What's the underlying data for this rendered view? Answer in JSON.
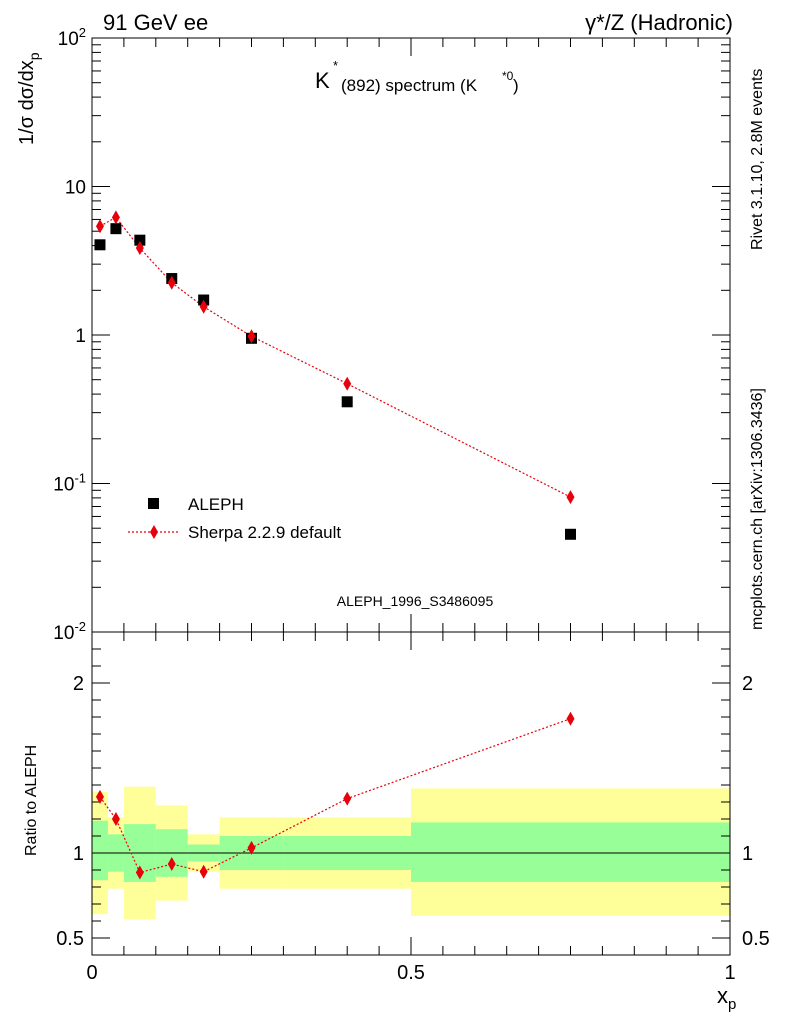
{
  "header": {
    "left": "91 GeV ee",
    "right": "γ*/Z (Hadronic)"
  },
  "side_labels": {
    "rivet": "Rivet 3.1.10,  2.8M events",
    "mcplots": "mcplots.cern.ch [arXiv:1306.3436]"
  },
  "colors": {
    "data": "#000000",
    "mc": "#e8000b",
    "band_inner": "#98ff98",
    "band_outer": "#ffff99"
  },
  "chart_data": [
    {
      "type": "scatter",
      "panel": "main",
      "title": "K*(892) spectrum (K*0)",
      "ylabel": "1/σ dσ/dxp",
      "xlim": [
        0,
        1
      ],
      "ylim": [
        0.01,
        100
      ],
      "yscale": "log",
      "ytick_labels": [
        "10^-2",
        "10^-1",
        "1",
        "10",
        "10^2"
      ],
      "watermark": "ALEPH_1996_S3486095",
      "legend_position": "lower-left",
      "series": [
        {
          "name": "ALEPH",
          "marker": "square",
          "x": [
            0.0125,
            0.0375,
            0.075,
            0.125,
            0.175,
            0.25,
            0.4,
            0.75
          ],
          "y": [
            4.05,
            5.2,
            4.35,
            2.4,
            1.72,
            0.95,
            0.355,
            0.0455
          ]
        },
        {
          "name": "Sherpa 2.2.9 default",
          "marker": "diamond",
          "line": "dotted",
          "x": [
            0.0125,
            0.0375,
            0.075,
            0.125,
            0.175,
            0.25,
            0.4,
            0.75
          ],
          "y": [
            5.4,
            6.2,
            3.85,
            2.25,
            1.55,
            0.98,
            0.47,
            0.081
          ]
        }
      ]
    },
    {
      "type": "line",
      "panel": "ratio",
      "ylabel": "Ratio to ALEPH",
      "xlabel": "xp",
      "xlim": [
        0,
        1
      ],
      "ylim": [
        0.4,
        2.3
      ],
      "xtick_labels": [
        "0",
        "0.5",
        "1"
      ],
      "ytick_labels": [
        "0.5",
        "1",
        "2"
      ],
      "series": [
        {
          "name": "Sherpa 2.2.9 default",
          "x": [
            0.0125,
            0.0375,
            0.075,
            0.125,
            0.175,
            0.25,
            0.4,
            0.75
          ],
          "y": [
            1.33,
            1.2,
            0.885,
            0.935,
            0.89,
            1.03,
            1.32,
            1.79
          ]
        }
      ],
      "bands": [
        {
          "x0": 0.0,
          "x1": 0.025,
          "inner": [
            0.84,
            1.19
          ],
          "outer": [
            0.64,
            1.36
          ]
        },
        {
          "x0": 0.025,
          "x1": 0.05,
          "inner": [
            0.89,
            1.11
          ],
          "outer": [
            0.79,
            1.21
          ]
        },
        {
          "x0": 0.05,
          "x1": 0.1,
          "inner": [
            0.83,
            1.17
          ],
          "outer": [
            0.61,
            1.39
          ]
        },
        {
          "x0": 0.1,
          "x1": 0.15,
          "inner": [
            0.86,
            1.14
          ],
          "outer": [
            0.72,
            1.28
          ]
        },
        {
          "x0": 0.15,
          "x1": 0.2,
          "inner": [
            0.95,
            1.05
          ],
          "outer": [
            0.89,
            1.11
          ]
        },
        {
          "x0": 0.2,
          "x1": 0.3,
          "inner": [
            0.9,
            1.1
          ],
          "outer": [
            0.79,
            1.21
          ]
        },
        {
          "x0": 0.3,
          "x1": 0.5,
          "inner": [
            0.9,
            1.1
          ],
          "outer": [
            0.79,
            1.21
          ]
        },
        {
          "x0": 0.5,
          "x1": 1.0,
          "inner": [
            0.83,
            1.18
          ],
          "outer": [
            0.63,
            1.38
          ]
        }
      ]
    }
  ]
}
